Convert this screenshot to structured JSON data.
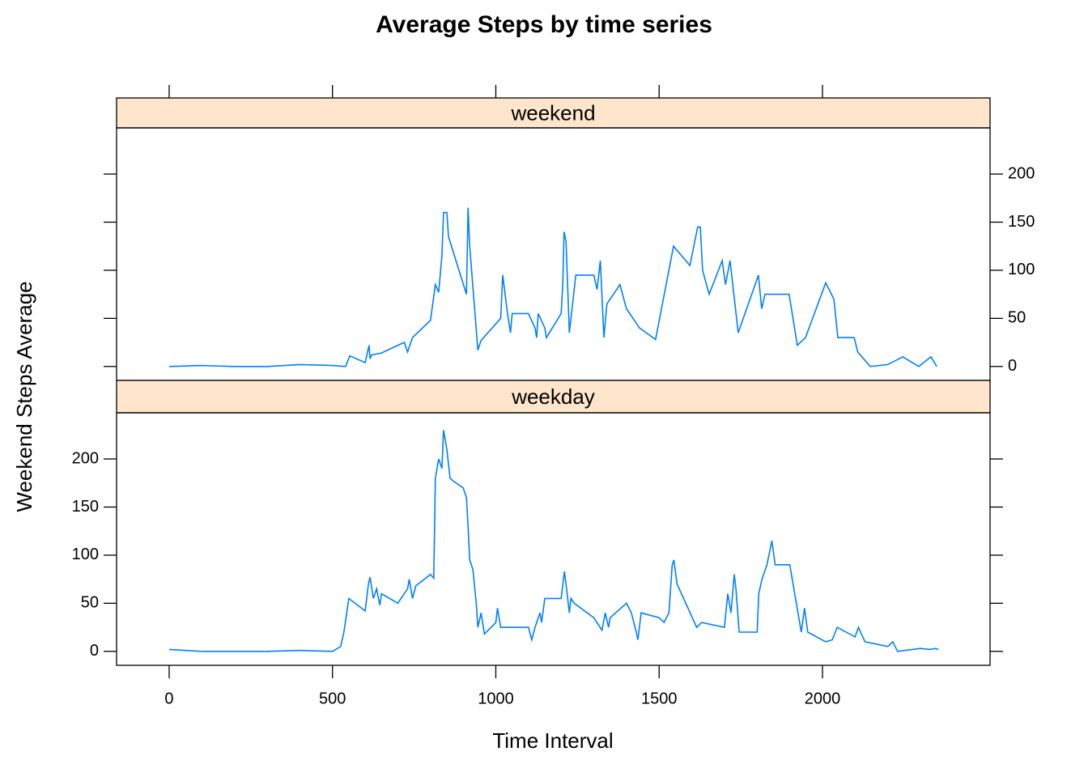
{
  "chart_data": {
    "type": "line",
    "title": "Average Steps by time series",
    "x_label": "Time Interval",
    "y_label": "Weekend Steps Average",
    "xlim": [
      -161,
      2513
    ],
    "xticks": [
      0,
      500,
      1000,
      1500,
      2000
    ],
    "ylim": [
      -14.5,
      248
    ],
    "yticks": [
      0,
      50,
      100,
      150,
      200
    ],
    "strip_color": "#ffe5cc",
    "series": [
      {
        "name": "weekend",
        "color": "#0080ff",
        "x": [
          0,
          100,
          200,
          300,
          400,
          500,
          540,
          553,
          600,
          612,
          615,
          620,
          650,
          700,
          720,
          730,
          745,
          800,
          815,
          825,
          835,
          840,
          850,
          855,
          910,
          915,
          920,
          935,
          945,
          955,
          1015,
          1021,
          1035,
          1045,
          1050,
          1100,
          1120,
          1125,
          1130,
          1150,
          1155,
          1200,
          1205,
          1209,
          1215,
          1225,
          1245,
          1300,
          1310,
          1320,
          1331,
          1340,
          1380,
          1400,
          1440,
          1489,
          1544,
          1594,
          1618,
          1626,
          1633,
          1653,
          1693,
          1703,
          1717,
          1742,
          1804,
          1814,
          1824,
          1848,
          1898,
          1923,
          1948,
          2010,
          2035,
          2047,
          2097,
          2108,
          2146,
          2200,
          2246,
          2295,
          2332,
          2350
        ],
        "values": [
          0,
          1,
          0,
          0,
          2,
          1,
          0,
          11,
          4,
          22,
          8,
          12,
          14,
          22,
          25,
          15,
          30,
          48,
          85,
          77,
          115,
          160,
          160,
          135,
          75,
          165,
          125,
          60,
          17,
          27,
          50,
          95,
          57,
          35,
          55,
          55,
          40,
          30,
          55,
          40,
          30,
          55,
          85,
          140,
          130,
          35,
          95,
          95,
          80,
          110,
          30,
          65,
          85,
          60,
          40,
          28,
          125,
          105,
          145,
          145,
          100,
          75,
          110,
          85,
          110,
          35,
          95,
          60,
          75,
          75,
          75,
          22,
          30,
          87,
          70,
          30,
          30,
          15,
          0,
          2,
          10,
          0,
          10,
          0
        ]
      },
      {
        "name": "weekday",
        "color": "#0080ff",
        "x": [
          0,
          100,
          200,
          300,
          400,
          500,
          525,
          535,
          550,
          600,
          610,
          615,
          625,
          635,
          645,
          650,
          700,
          730,
          735,
          745,
          755,
          800,
          810,
          815,
          825,
          835,
          840,
          850,
          860,
          870,
          900,
          910,
          915,
          920,
          930,
          940,
          945,
          955,
          965,
          1000,
          1005,
          1015,
          1050,
          1100,
          1110,
          1120,
          1135,
          1140,
          1150,
          1200,
          1210,
          1215,
          1225,
          1230,
          1240,
          1300,
          1325,
          1335,
          1345,
          1350,
          1400,
          1415,
          1430,
          1435,
          1445,
          1500,
          1515,
          1530,
          1540,
          1545,
          1555,
          1615,
          1630,
          1700,
          1710,
          1720,
          1730,
          1735,
          1745,
          1800,
          1805,
          1815,
          1830,
          1845,
          1855,
          1900,
          1915,
          1935,
          1945,
          1955,
          2010,
          2030,
          2045,
          2100,
          2110,
          2130,
          2200,
          2215,
          2230,
          2300,
          2330,
          2345,
          2355
        ],
        "values": [
          2,
          0,
          0,
          0,
          1,
          0,
          5,
          20,
          55,
          42,
          70,
          77,
          55,
          65,
          48,
          60,
          50,
          65,
          75,
          55,
          68,
          80,
          76,
          180,
          200,
          190,
          230,
          210,
          180,
          177,
          170,
          160,
          130,
          95,
          85,
          50,
          25,
          40,
          18,
          30,
          45,
          25,
          25,
          25,
          12,
          25,
          40,
          30,
          55,
          55,
          83,
          70,
          40,
          55,
          50,
          35,
          22,
          40,
          25,
          35,
          50,
          40,
          20,
          12,
          40,
          35,
          30,
          40,
          90,
          95,
          70,
          25,
          30,
          25,
          60,
          40,
          80,
          65,
          20,
          20,
          60,
          75,
          90,
          115,
          90,
          90,
          60,
          20,
          45,
          20,
          10,
          12,
          25,
          15,
          25,
          10,
          5,
          10,
          0,
          3,
          2,
          3,
          2
        ]
      }
    ]
  }
}
